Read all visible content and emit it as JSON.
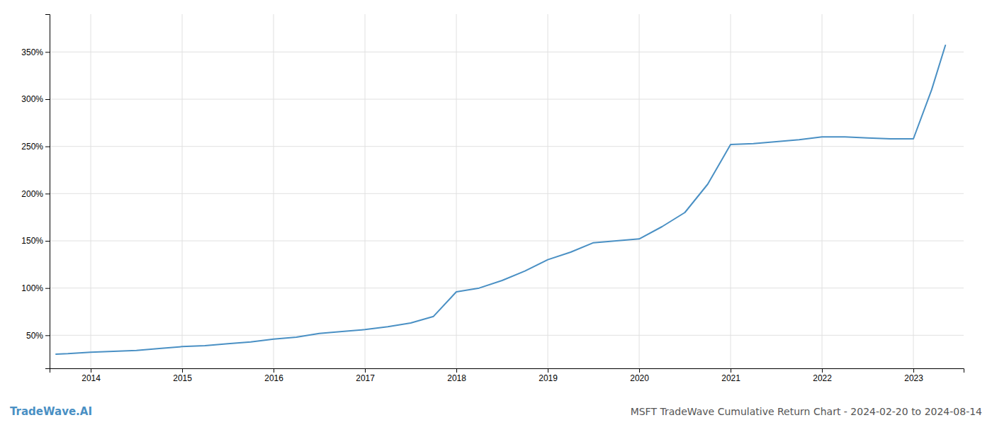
{
  "chart_data": {
    "type": "line",
    "title": "MSFT TradeWave Cumulative Return Chart - 2024-02-20 to 2024-08-14",
    "annotations": [
      "TradeWave.AI"
    ],
    "color": "#4a90c4",
    "grid": true,
    "x": [
      2013.62,
      2013.75,
      2014.0,
      2014.25,
      2014.5,
      2014.75,
      2015.0,
      2015.25,
      2015.5,
      2015.75,
      2016.0,
      2016.25,
      2016.5,
      2016.75,
      2017.0,
      2017.25,
      2017.5,
      2017.75,
      2018.0,
      2018.25,
      2018.5,
      2018.75,
      2019.0,
      2019.25,
      2019.5,
      2019.75,
      2020.0,
      2020.25,
      2020.5,
      2020.75,
      2021.0,
      2021.25,
      2021.5,
      2021.75,
      2022.0,
      2022.25,
      2022.5,
      2022.75,
      2023.0,
      2023.2,
      2023.35
    ],
    "values": [
      30,
      30.5,
      32,
      33,
      34,
      36,
      38,
      39,
      41,
      43,
      46,
      48,
      52,
      54,
      56,
      59,
      63,
      70,
      96,
      100,
      108,
      118,
      130,
      138,
      148,
      150,
      152,
      165,
      180,
      210,
      252,
      253,
      255,
      257,
      260,
      260,
      259,
      258,
      258,
      310,
      357
    ],
    "xlim": [
      2013.55,
      2023.55
    ],
    "xticks": [
      2014,
      2015,
      2016,
      2017,
      2018,
      2019,
      2020,
      2021,
      2022,
      2023
    ],
    "ylim": [
      15,
      390
    ],
    "yticks": [
      {
        "value": 50,
        "label": "50%"
      },
      {
        "value": 100,
        "label": "100%"
      },
      {
        "value": 150,
        "label": "150%"
      },
      {
        "value": 200,
        "label": "200%"
      },
      {
        "value": 250,
        "label": "250%"
      },
      {
        "value": 300,
        "label": "300%"
      },
      {
        "value": 350,
        "label": "350%"
      }
    ]
  }
}
